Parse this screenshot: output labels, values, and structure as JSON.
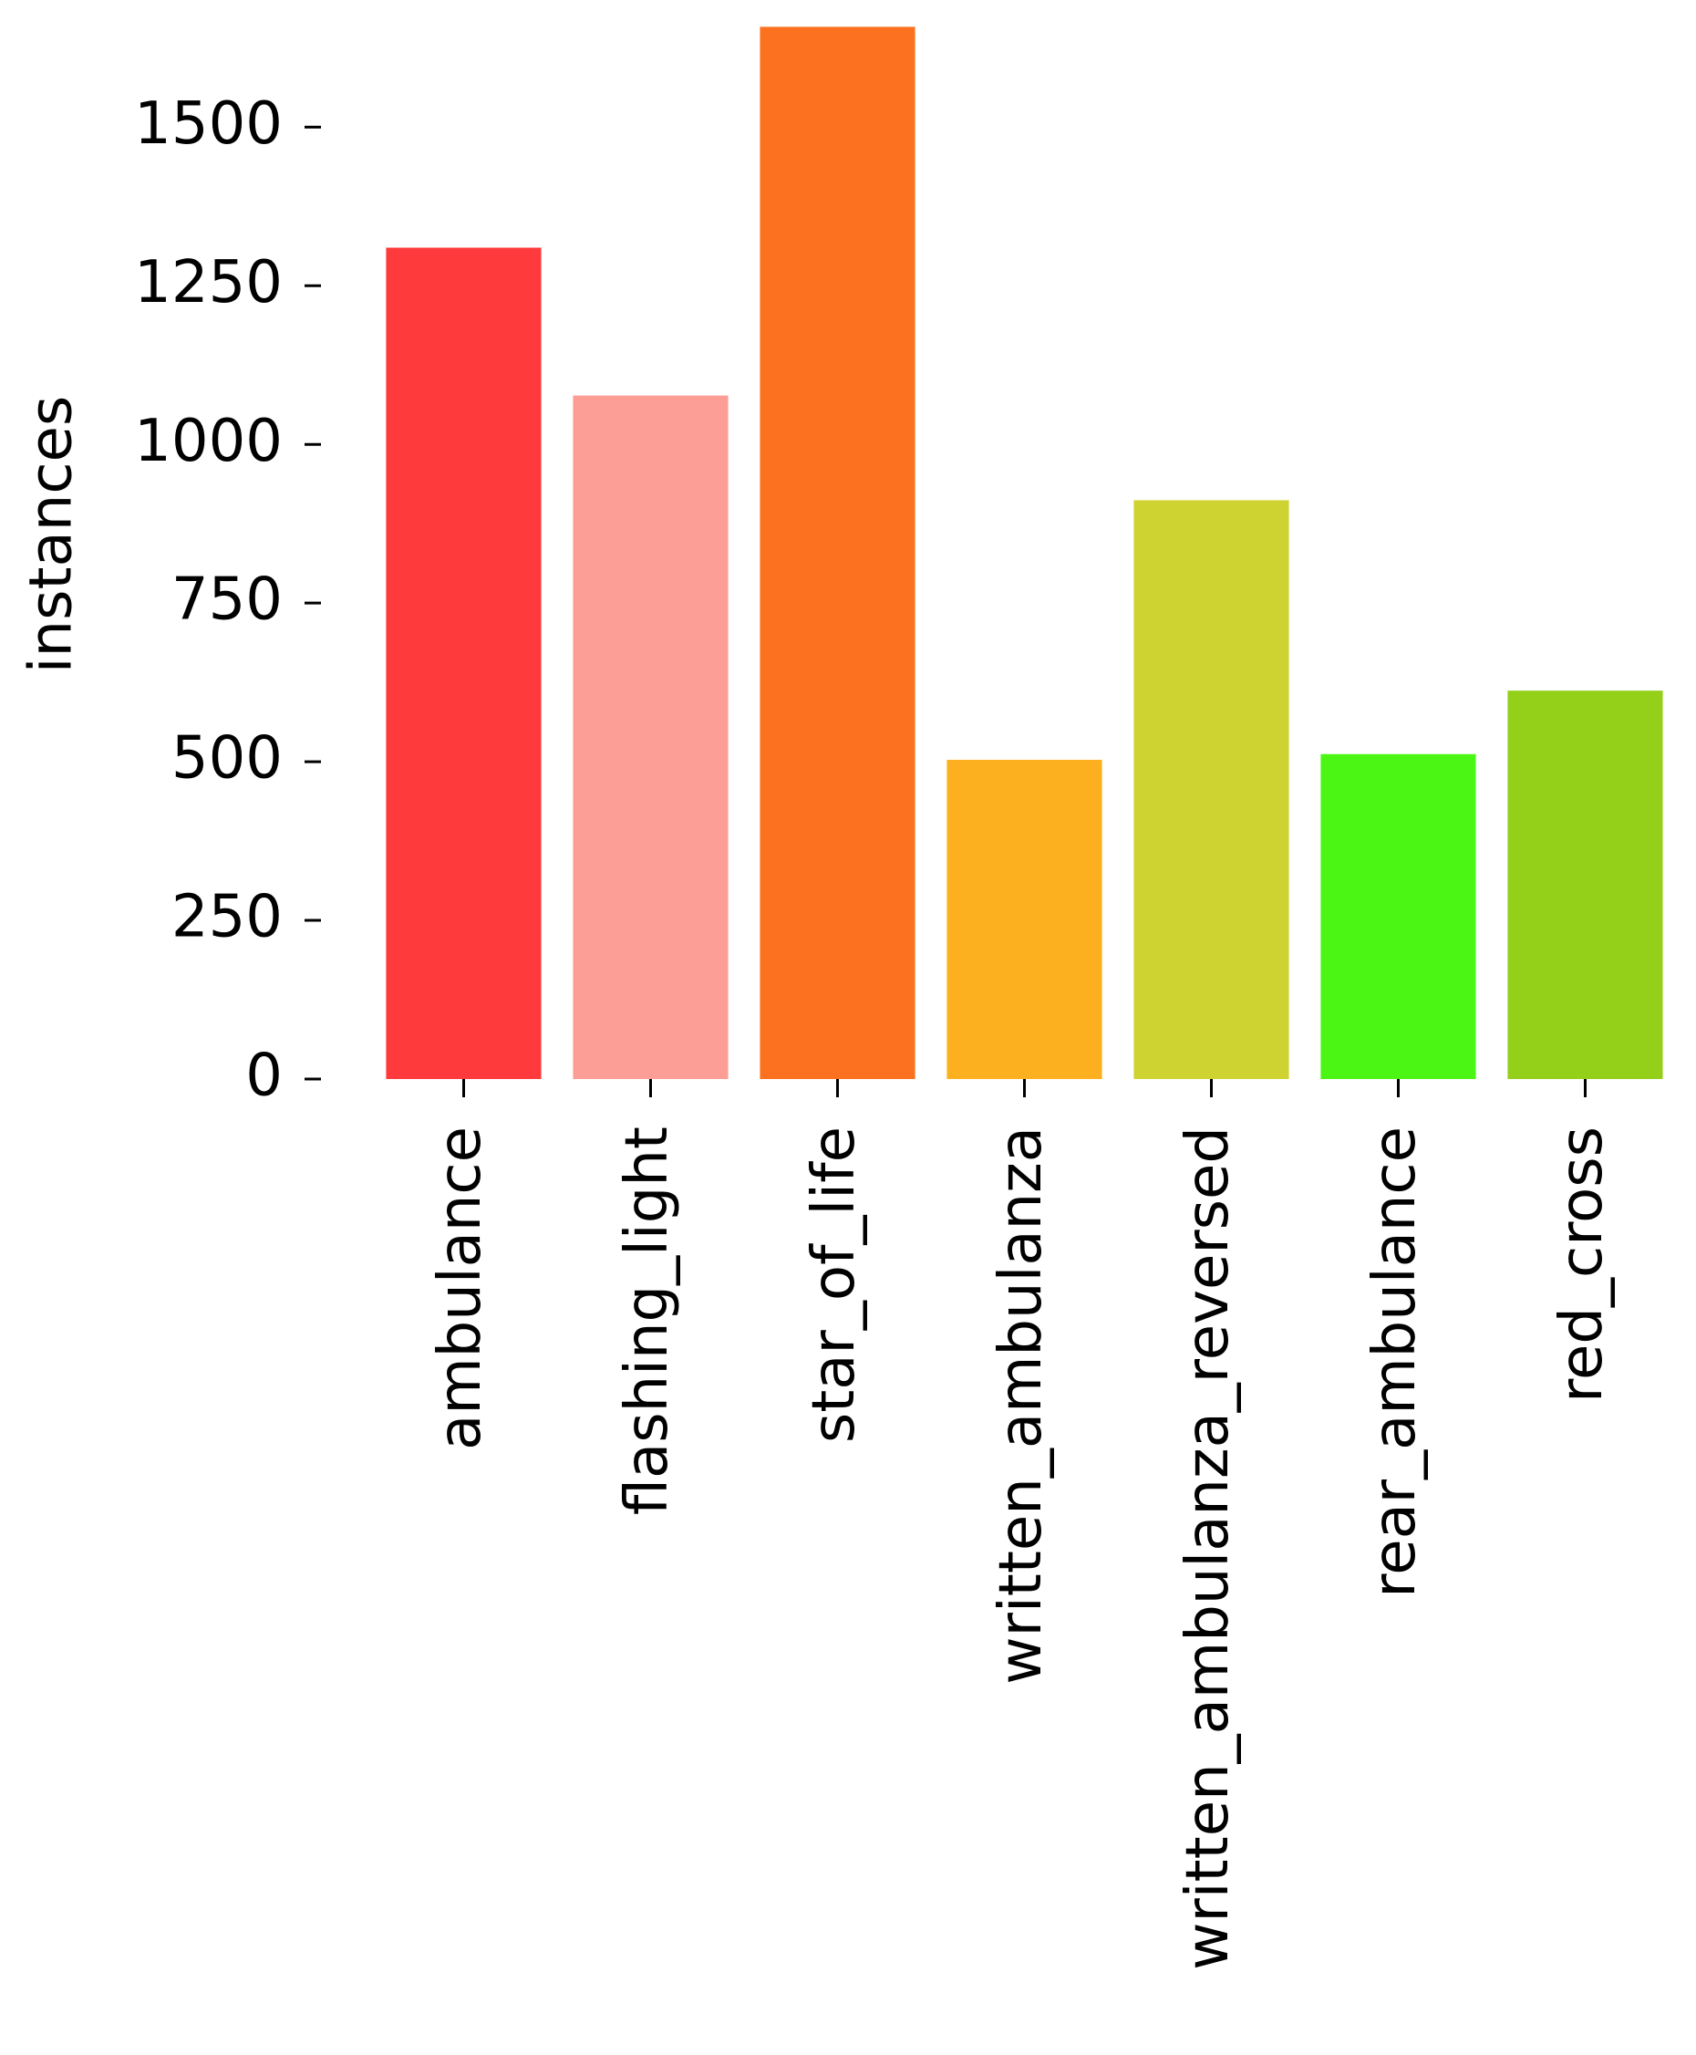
{
  "chart_data": {
    "type": "bar",
    "y_label": "instances",
    "categories": [
      "ambulance",
      "flashing_light",
      "star_of_life",
      "written_ambulanza",
      "written_ambulanza_reversed",
      "rear_ambulance",
      "red_cross"
    ],
    "values": [
      1310,
      1077,
      1658,
      503,
      912,
      512,
      612
    ],
    "colors": [
      "#fe3a3c",
      "#fd9e96",
      "#fc711f",
      "#fdb01f",
      "#cfd332",
      "#4cf614",
      "#94cf1a"
    ],
    "ylim": [
      0,
      1660
    ],
    "yticks": [
      0,
      250,
      500,
      750,
      1000,
      1250,
      1500
    ],
    "grid": false
  }
}
